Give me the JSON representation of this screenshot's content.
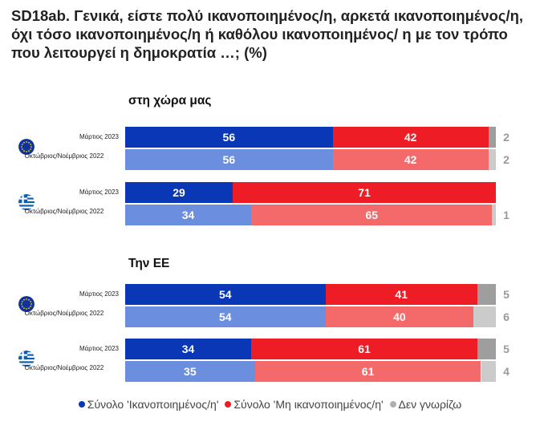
{
  "title": "SD18ab. Γενικά, είστε πολύ ικανοποιημένος/η, αρκετά ικανοποιημένος/η, όχι τόσο ικανοποιημένος/η ή καθόλου ικανοποιημένος/ η με τον τρόπο που λειτουργεί η δημοκρατία …; (%)",
  "colors": {
    "satisfied_current": "#0a37b5",
    "satisfied_previous": "#6b8ede",
    "not_satisfied_current": "#ee1c25",
    "not_satisfied_previous": "#f46a6a",
    "dont_know_current": "#9e9e9e",
    "dont_know_previous": "#cbcbcb",
    "dont_know_label": "#9a9a9a"
  },
  "legend": {
    "satisfied": "Σύνολο 'Ικανοποιημένος/η'",
    "not_satisfied": "Σύνολο 'Μη ικανοποιημένος/η'",
    "dont_know": "Δεν γνωρίζω"
  },
  "chart_data": {
    "type": "bar",
    "orientation": "horizontal",
    "stacked": true,
    "unit": "%",
    "xlim": [
      0,
      100
    ],
    "series_names": [
      "Σύνολο 'Ικανοποιημένος/η'",
      "Σύνολο 'Μη ικανοποιημένος/η'",
      "Δεν γνωρίζω"
    ],
    "sections": [
      {
        "title": "στη χώρα μας",
        "groups": [
          {
            "flag": "eu-flag",
            "rows": [
              {
                "label": "Μάρτιος 2023",
                "period": "current",
                "values": [
                  56,
                  42,
                  2
                ]
              },
              {
                "label": "Οκτώβριος/Νοέμβριος 2022",
                "period": "previous",
                "values": [
                  56,
                  42,
                  2
                ]
              }
            ]
          },
          {
            "flag": "greece-flag",
            "rows": [
              {
                "label": "Μάρτιος 2023",
                "period": "current",
                "values": [
                  29,
                  71,
                  0
                ]
              },
              {
                "label": "Οκτώβριος/Νοέμβριος 2022",
                "period": "previous",
                "values": [
                  34,
                  65,
                  1
                ]
              }
            ]
          }
        ]
      },
      {
        "title": "Την ΕΕ",
        "groups": [
          {
            "flag": "eu-flag",
            "rows": [
              {
                "label": "Μάρτιος 2023",
                "period": "current",
                "values": [
                  54,
                  41,
                  5
                ]
              },
              {
                "label": "Οκτώβριος/Νοέμβριος 2022",
                "period": "previous",
                "values": [
                  54,
                  40,
                  6
                ]
              }
            ]
          },
          {
            "flag": "greece-flag",
            "rows": [
              {
                "label": "Μάρτιος 2023",
                "period": "current",
                "values": [
                  34,
                  61,
                  5
                ]
              },
              {
                "label": "Οκτώβριος/Νοέμβριος 2022",
                "period": "previous",
                "values": [
                  35,
                  61,
                  4
                ]
              }
            ]
          }
        ]
      }
    ]
  }
}
